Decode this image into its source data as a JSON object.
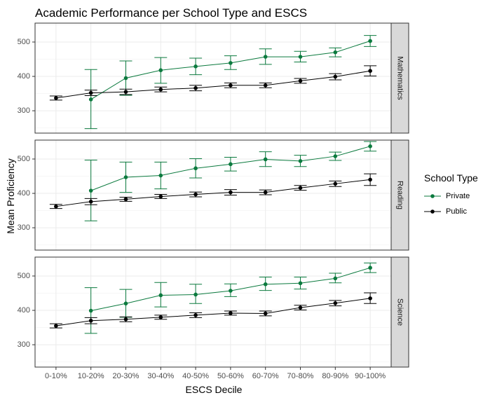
{
  "chart_data": {
    "type": "line",
    "title": "Academic Performance per School Type and ESCS",
    "xlabel": "ESCS Decile",
    "ylabel": "Mean Proficiency",
    "categories": [
      "0-10%",
      "10-20%",
      "20-30%",
      "30-40%",
      "40-50%",
      "50-60%",
      "60-70%",
      "70-80%",
      "80-90%",
      "90-100%"
    ],
    "ylim": [
      235,
      555
    ],
    "yticks": [
      300,
      400,
      500
    ],
    "grid": true,
    "legend": {
      "title": "School Type",
      "position": "right",
      "entries": [
        {
          "label": "Private",
          "color": "#0b7a3e"
        },
        {
          "label": "Public",
          "color": "#000000"
        }
      ]
    },
    "panels": [
      {
        "strip": "Mathematics",
        "series": [
          {
            "name": "Private",
            "color": "#0b7a3e",
            "values": [
              null,
              333,
              395,
              418,
              429,
              439,
              457,
              457,
              470,
              503
            ],
            "lower": [
              null,
              248,
              345,
              380,
              405,
              420,
              435,
              442,
              457,
              487
            ],
            "upper": [
              null,
              420,
              445,
              455,
              453,
              460,
              480,
              473,
              483,
              519
            ]
          },
          {
            "name": "Public",
            "color": "#000000",
            "values": [
              337,
              352,
              355,
              362,
              366,
              374,
              374,
              387,
              399,
              416
            ],
            "lower": [
              331,
              344,
              347,
              355,
              358,
              367,
              367,
              380,
              390,
              401
            ],
            "upper": [
              343,
              360,
              363,
              369,
              374,
              381,
              381,
              394,
              408,
              431
            ]
          }
        ]
      },
      {
        "strip": "Reading",
        "series": [
          {
            "name": "Private",
            "color": "#0b7a3e",
            "values": [
              null,
              408,
              447,
              452,
              473,
              485,
              499,
              494,
              508,
              537
            ],
            "lower": [
              null,
              320,
              403,
              413,
              445,
              465,
              478,
              478,
              496,
              523
            ],
            "upper": [
              null,
              497,
              491,
              491,
              501,
              505,
              521,
              511,
              520,
              551
            ]
          },
          {
            "name": "Public",
            "color": "#000000",
            "values": [
              362,
              376,
              383,
              391,
              397,
              403,
              403,
              416,
              428,
              440
            ],
            "lower": [
              356,
              367,
              377,
              385,
              390,
              395,
              396,
              409,
              420,
              423
            ],
            "upper": [
              368,
              385,
              389,
              397,
              404,
              411,
              410,
              423,
              436,
              457
            ]
          }
        ]
      },
      {
        "strip": "Science",
        "series": [
          {
            "name": "Private",
            "color": "#0b7a3e",
            "values": [
              null,
              399,
              420,
              444,
              446,
              457,
              476,
              479,
              493,
              524
            ],
            "lower": [
              null,
              333,
              380,
              410,
              420,
              440,
              458,
              462,
              480,
              510
            ],
            "upper": [
              null,
              466,
              461,
              481,
              476,
              477,
              497,
              497,
              508,
              538
            ]
          },
          {
            "name": "Public",
            "color": "#000000",
            "values": [
              355,
              370,
              374,
              380,
              386,
              392,
              391,
              408,
              421,
              435
            ],
            "lower": [
              349,
              361,
              367,
              374,
              379,
              386,
              384,
              401,
              413,
              420
            ],
            "upper": [
              361,
              379,
              381,
              386,
              393,
              398,
              398,
              415,
              429,
              451
            ]
          }
        ]
      }
    ]
  }
}
